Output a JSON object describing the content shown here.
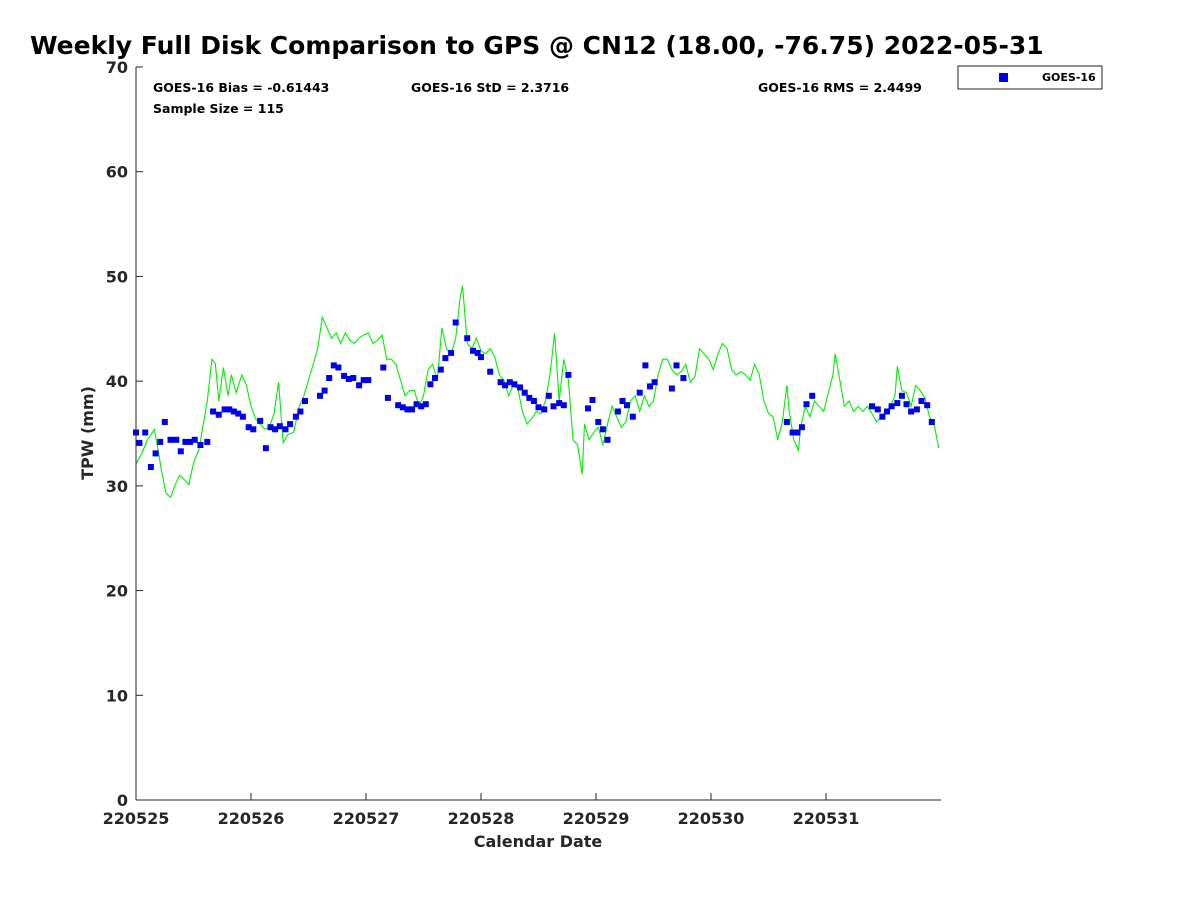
{
  "chart_data": {
    "type": "scatter",
    "title": "Weekly Full Disk Comparison to GPS @ CN12 (18.00, -76.75) 2022-05-31",
    "xlabel": "Calendar Date",
    "ylabel": "TPW (mm)",
    "xlim": [
      0,
      7
    ],
    "ylim": [
      0,
      70
    ],
    "x_tick_labels": [
      "220525",
      "220526",
      "220527",
      "220528",
      "220529",
      "220530",
      "220531"
    ],
    "y_ticks": [
      0,
      10,
      20,
      30,
      40,
      50,
      60,
      70
    ],
    "grid": false,
    "legend_position": "top-right outside",
    "stats": {
      "bias": "GOES-16 Bias = -0.61443",
      "std": "GOES-16 StD = 2.3716",
      "rms": "GOES-16 RMS = 2.4499",
      "sample": "Sample Size = 115"
    },
    "series": [
      {
        "name": "GOES-16",
        "kind": "points",
        "color": "#0000ee",
        "points": [
          [
            0.0,
            35.1
          ],
          [
            0.03,
            34.1
          ],
          [
            0.08,
            35.1
          ],
          [
            0.13,
            31.8
          ],
          [
            0.17,
            33.1
          ],
          [
            0.21,
            34.2
          ],
          [
            0.25,
            36.1
          ],
          [
            0.3,
            34.4
          ],
          [
            0.35,
            34.4
          ],
          [
            0.39,
            33.3
          ],
          [
            0.43,
            34.2
          ],
          [
            0.47,
            34.2
          ],
          [
            0.51,
            34.4
          ],
          [
            0.56,
            33.9
          ],
          [
            0.62,
            34.2
          ],
          [
            0.67,
            37.1
          ],
          [
            0.72,
            36.8
          ],
          [
            0.77,
            37.3
          ],
          [
            0.81,
            37.3
          ],
          [
            0.85,
            37.1
          ],
          [
            0.89,
            36.9
          ],
          [
            0.93,
            36.6
          ],
          [
            0.98,
            35.6
          ],
          [
            1.02,
            35.4
          ],
          [
            1.08,
            36.2
          ],
          [
            1.13,
            33.6
          ],
          [
            1.17,
            35.6
          ],
          [
            1.21,
            35.4
          ],
          [
            1.25,
            35.7
          ],
          [
            1.3,
            35.4
          ],
          [
            1.34,
            35.9
          ],
          [
            1.39,
            36.6
          ],
          [
            1.43,
            37.1
          ],
          [
            1.47,
            38.1
          ],
          [
            1.6,
            38.6
          ],
          [
            1.64,
            39.1
          ],
          [
            1.68,
            40.3
          ],
          [
            1.72,
            41.5
          ],
          [
            1.76,
            41.3
          ],
          [
            1.81,
            40.5
          ],
          [
            1.85,
            40.2
          ],
          [
            1.89,
            40.3
          ],
          [
            1.94,
            39.6
          ],
          [
            1.98,
            40.1
          ],
          [
            2.02,
            40.1
          ],
          [
            2.15,
            41.3
          ],
          [
            2.19,
            38.4
          ],
          [
            2.28,
            37.7
          ],
          [
            2.32,
            37.5
          ],
          [
            2.36,
            37.3
          ],
          [
            2.4,
            37.3
          ],
          [
            2.44,
            37.8
          ],
          [
            2.48,
            37.6
          ],
          [
            2.52,
            37.8
          ],
          [
            2.56,
            39.7
          ],
          [
            2.6,
            40.3
          ],
          [
            2.65,
            41.1
          ],
          [
            2.69,
            42.2
          ],
          [
            2.74,
            42.7
          ],
          [
            2.78,
            45.6
          ],
          [
            2.88,
            44.1
          ],
          [
            2.93,
            42.9
          ],
          [
            2.97,
            42.7
          ],
          [
            3.0,
            42.3
          ],
          [
            3.08,
            40.9
          ],
          [
            3.17,
            39.9
          ],
          [
            3.21,
            39.6
          ],
          [
            3.25,
            39.9
          ],
          [
            3.29,
            39.7
          ],
          [
            3.34,
            39.4
          ],
          [
            3.38,
            38.9
          ],
          [
            3.42,
            38.4
          ],
          [
            3.46,
            38.1
          ],
          [
            3.5,
            37.5
          ],
          [
            3.55,
            37.3
          ],
          [
            3.59,
            38.6
          ],
          [
            3.63,
            37.6
          ],
          [
            3.68,
            37.9
          ],
          [
            3.72,
            37.7
          ],
          [
            3.76,
            40.6
          ],
          [
            3.93,
            37.4
          ],
          [
            3.97,
            38.2
          ],
          [
            4.02,
            36.1
          ],
          [
            4.06,
            35.4
          ],
          [
            4.1,
            34.4
          ],
          [
            4.19,
            37.1
          ],
          [
            4.23,
            38.1
          ],
          [
            4.27,
            37.7
          ],
          [
            4.32,
            36.6
          ],
          [
            4.38,
            38.9
          ],
          [
            4.43,
            41.5
          ],
          [
            4.47,
            39.5
          ],
          [
            4.51,
            39.9
          ],
          [
            4.66,
            39.3
          ],
          [
            4.7,
            41.5
          ],
          [
            4.76,
            40.3
          ],
          [
            5.66,
            36.1
          ],
          [
            5.71,
            35.1
          ],
          [
            5.75,
            35.1
          ],
          [
            5.79,
            35.6
          ],
          [
            5.83,
            37.8
          ],
          [
            5.88,
            38.6
          ],
          [
            6.4,
            37.6
          ],
          [
            6.45,
            37.3
          ],
          [
            6.49,
            36.6
          ],
          [
            6.53,
            37.1
          ],
          [
            6.57,
            37.6
          ],
          [
            6.62,
            37.9
          ],
          [
            6.66,
            38.6
          ],
          [
            6.7,
            37.8
          ],
          [
            6.74,
            37.1
          ],
          [
            6.79,
            37.3
          ],
          [
            6.83,
            38.1
          ],
          [
            6.88,
            37.7
          ],
          [
            6.92,
            36.1
          ]
        ]
      },
      {
        "name": "",
        "kind": "line",
        "color": "#00ee00",
        "points": [
          [
            0.0,
            32.1
          ],
          [
            0.05,
            33.1
          ],
          [
            0.1,
            34.4
          ],
          [
            0.16,
            35.4
          ],
          [
            0.18,
            34.2
          ],
          [
            0.22,
            31.6
          ],
          [
            0.26,
            29.3
          ],
          [
            0.3,
            28.9
          ],
          [
            0.34,
            30.1
          ],
          [
            0.38,
            31.0
          ],
          [
            0.42,
            30.6
          ],
          [
            0.46,
            30.1
          ],
          [
            0.5,
            32.2
          ],
          [
            0.55,
            33.6
          ],
          [
            0.58,
            35.6
          ],
          [
            0.62,
            38.1
          ],
          [
            0.66,
            42.1
          ],
          [
            0.69,
            41.7
          ],
          [
            0.72,
            38.1
          ],
          [
            0.76,
            41.3
          ],
          [
            0.8,
            38.6
          ],
          [
            0.83,
            40.6
          ],
          [
            0.87,
            38.9
          ],
          [
            0.92,
            40.6
          ],
          [
            0.96,
            39.6
          ],
          [
            1.0,
            37.6
          ],
          [
            1.04,
            36.4
          ],
          [
            1.08,
            35.9
          ],
          [
            1.12,
            35.4
          ],
          [
            1.16,
            35.6
          ],
          [
            1.2,
            36.9
          ],
          [
            1.24,
            39.9
          ],
          [
            1.28,
            34.1
          ],
          [
            1.32,
            34.9
          ],
          [
            1.37,
            35.1
          ],
          [
            1.42,
            37.6
          ],
          [
            1.46,
            38.6
          ],
          [
            1.5,
            40.1
          ],
          [
            1.54,
            41.6
          ],
          [
            1.58,
            43.1
          ],
          [
            1.62,
            46.1
          ],
          [
            1.66,
            45.1
          ],
          [
            1.7,
            44.1
          ],
          [
            1.74,
            44.6
          ],
          [
            1.78,
            43.6
          ],
          [
            1.82,
            44.6
          ],
          [
            1.86,
            43.9
          ],
          [
            1.9,
            43.6
          ],
          [
            1.94,
            44.1
          ],
          [
            1.98,
            44.4
          ],
          [
            2.02,
            44.6
          ],
          [
            2.06,
            43.6
          ],
          [
            2.1,
            43.9
          ],
          [
            2.14,
            44.4
          ],
          [
            2.18,
            42.1
          ],
          [
            2.22,
            42.1
          ],
          [
            2.26,
            41.6
          ],
          [
            2.3,
            40.1
          ],
          [
            2.34,
            38.6
          ],
          [
            2.38,
            39.1
          ],
          [
            2.42,
            39.1
          ],
          [
            2.46,
            37.6
          ],
          [
            2.5,
            38.6
          ],
          [
            2.54,
            41.1
          ],
          [
            2.58,
            41.6
          ],
          [
            2.62,
            40.1
          ],
          [
            2.66,
            45.1
          ],
          [
            2.7,
            43.1
          ],
          [
            2.74,
            42.6
          ],
          [
            2.78,
            44.1
          ],
          [
            2.82,
            48.1
          ],
          [
            2.84,
            49.1
          ],
          [
            2.88,
            43.6
          ],
          [
            2.92,
            43.1
          ],
          [
            2.96,
            44.1
          ],
          [
            3.0,
            42.9
          ],
          [
            3.04,
            42.6
          ],
          [
            3.08,
            43.1
          ],
          [
            3.12,
            42.3
          ],
          [
            3.16,
            40.6
          ],
          [
            3.2,
            40.1
          ],
          [
            3.24,
            38.6
          ],
          [
            3.28,
            39.6
          ],
          [
            3.32,
            39.3
          ],
          [
            3.36,
            37.1
          ],
          [
            3.4,
            35.9
          ],
          [
            3.44,
            36.4
          ],
          [
            3.48,
            37.1
          ],
          [
            3.52,
            36.9
          ],
          [
            3.56,
            38.1
          ],
          [
            3.6,
            40.6
          ],
          [
            3.64,
            44.6
          ],
          [
            3.68,
            38.1
          ],
          [
            3.72,
            42.1
          ],
          [
            3.76,
            40.1
          ],
          [
            3.8,
            34.4
          ],
          [
            3.84,
            33.9
          ],
          [
            3.88,
            31.1
          ],
          [
            3.9,
            35.9
          ],
          [
            3.94,
            34.4
          ],
          [
            3.98,
            35.1
          ],
          [
            4.02,
            35.6
          ],
          [
            4.06,
            33.9
          ],
          [
            4.1,
            35.9
          ],
          [
            4.14,
            37.6
          ],
          [
            4.18,
            36.6
          ],
          [
            4.22,
            35.6
          ],
          [
            4.26,
            36.1
          ],
          [
            4.3,
            38.1
          ],
          [
            4.34,
            38.6
          ],
          [
            4.38,
            37.1
          ],
          [
            4.42,
            38.6
          ],
          [
            4.46,
            37.6
          ],
          [
            4.5,
            38.1
          ],
          [
            4.54,
            40.6
          ],
          [
            4.58,
            42.1
          ],
          [
            4.62,
            42.1
          ],
          [
            4.66,
            41.1
          ],
          [
            4.7,
            40.6
          ],
          [
            4.74,
            40.9
          ],
          [
            4.78,
            41.6
          ],
          [
            4.82,
            39.9
          ],
          [
            4.86,
            40.4
          ],
          [
            4.9,
            43.1
          ],
          [
            4.94,
            42.6
          ],
          [
            4.98,
            42.1
          ],
          [
            5.02,
            41.1
          ],
          [
            5.06,
            42.6
          ],
          [
            5.1,
            43.6
          ],
          [
            5.14,
            43.1
          ],
          [
            5.18,
            41.1
          ],
          [
            5.22,
            40.6
          ],
          [
            5.26,
            40.9
          ],
          [
            5.3,
            40.6
          ],
          [
            5.34,
            40.1
          ],
          [
            5.38,
            41.6
          ],
          [
            5.42,
            40.6
          ],
          [
            5.46,
            38.1
          ],
          [
            5.5,
            36.9
          ],
          [
            5.54,
            36.6
          ],
          [
            5.58,
            34.4
          ],
          [
            5.62,
            36.1
          ],
          [
            5.66,
            39.6
          ],
          [
            5.68,
            37.1
          ],
          [
            5.72,
            34.4
          ],
          [
            5.76,
            33.4
          ],
          [
            5.78,
            35.6
          ],
          [
            5.82,
            37.6
          ],
          [
            5.86,
            36.6
          ],
          [
            5.9,
            38.1
          ],
          [
            5.94,
            37.6
          ],
          [
            5.98,
            37.1
          ],
          [
            6.02,
            38.9
          ],
          [
            6.06,
            40.6
          ],
          [
            6.08,
            42.6
          ],
          [
            6.12,
            40.1
          ],
          [
            6.16,
            37.6
          ],
          [
            6.2,
            38.1
          ],
          [
            6.24,
            37.1
          ],
          [
            6.28,
            37.6
          ],
          [
            6.32,
            37.1
          ],
          [
            6.36,
            37.6
          ],
          [
            6.4,
            36.9
          ],
          [
            6.44,
            36.1
          ],
          [
            6.48,
            36.6
          ],
          [
            6.52,
            37.1
          ],
          [
            6.56,
            37.6
          ],
          [
            6.6,
            38.6
          ],
          [
            6.62,
            41.4
          ],
          [
            6.66,
            39.1
          ],
          [
            6.7,
            38.9
          ],
          [
            6.74,
            37.6
          ],
          [
            6.78,
            39.6
          ],
          [
            6.82,
            39.1
          ],
          [
            6.86,
            38.4
          ],
          [
            6.9,
            36.6
          ],
          [
            6.94,
            35.9
          ],
          [
            6.98,
            33.6
          ]
        ]
      }
    ]
  }
}
